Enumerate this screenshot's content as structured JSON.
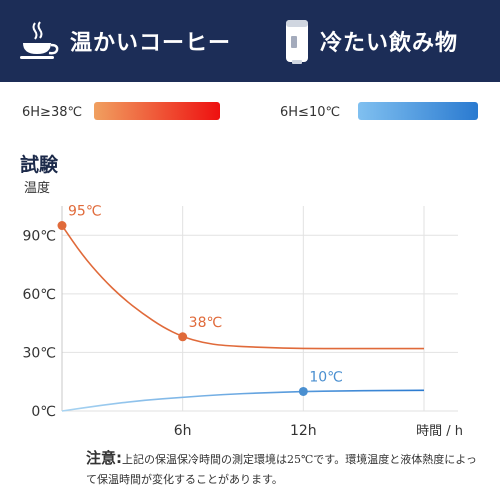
{
  "header": {
    "hot_label": "温かいコーヒー",
    "cold_label": "冷たい飲み物",
    "hot_icon": "coffee-cup-icon",
    "cold_icon": "tumbler-icon",
    "background": "#1c2d57"
  },
  "legend": {
    "hot": {
      "label": "6H≥38℃",
      "gradient": [
        "#f0a060",
        "#ee1010"
      ]
    },
    "cold": {
      "label": "6H≤10℃",
      "gradient": [
        "#80c0f0",
        "#2a7ad0"
      ]
    }
  },
  "chart_title": "試験",
  "note": {
    "head": "注意:",
    "text": "上記の保温保冷時間の測定環境は25℃です。環境温度と液体熱度によって保温時間が変化することがあります。"
  },
  "chart_data": {
    "type": "line",
    "title": "試験",
    "ylabel": "温度",
    "xlabel": "時間 / h",
    "x_ticks": [
      "6h",
      "12h"
    ],
    "y_ticks": [
      "0℃",
      "30℃",
      "60℃",
      "90℃"
    ],
    "xlim": [
      0,
      18
    ],
    "ylim": [
      0,
      105
    ],
    "grid": true,
    "series": [
      {
        "color": "#e06a3a",
        "x": [
          0,
          1,
          2,
          3,
          4,
          5,
          6,
          7,
          8,
          10,
          12,
          14,
          16,
          18
        ],
        "y": [
          95,
          80,
          68,
          58,
          50,
          43,
          38,
          35,
          33.5,
          32.5,
          32,
          32,
          32,
          32
        ],
        "point_labels": [
          {
            "x": 0,
            "y": 95,
            "text": "95℃"
          },
          {
            "x": 6,
            "y": 38,
            "text": "38℃"
          }
        ]
      },
      {
        "color": "#4a8fd0",
        "x": [
          0,
          2,
          4,
          6,
          8,
          10,
          12,
          14,
          16,
          18
        ],
        "y": [
          0,
          3,
          5.5,
          7,
          8.5,
          9.3,
          10,
          10.3,
          10.5,
          10.6
        ],
        "point_labels": [
          {
            "x": 12,
            "y": 10,
            "text": "10℃"
          }
        ]
      }
    ]
  }
}
